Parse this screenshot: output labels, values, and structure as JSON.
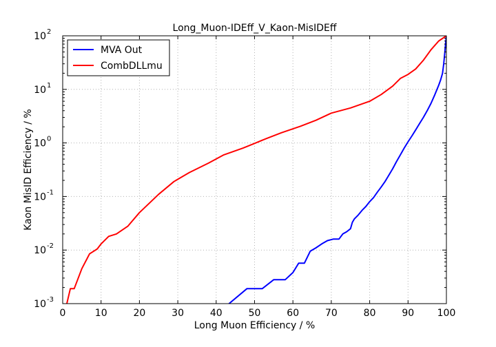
{
  "chart_data": {
    "type": "line",
    "title": "Long_Muon-IDEff_V_Kaon-MisIDEff",
    "xlabel": "Long Muon Efficiency / %",
    "ylabel": "Kaon MisID Efficiency / %",
    "xlim": [
      0,
      100
    ],
    "ylim": [
      0.001,
      100
    ],
    "yscale": "log",
    "grid": true,
    "legend_position": "top-left",
    "x_ticks": [
      0,
      10,
      20,
      30,
      40,
      50,
      60,
      70,
      80,
      90,
      100
    ],
    "y_ticks": [
      {
        "value": 0.001,
        "base": "10",
        "exp": "-3"
      },
      {
        "value": 0.01,
        "base": "10",
        "exp": "-2"
      },
      {
        "value": 0.1,
        "base": "10",
        "exp": "-1"
      },
      {
        "value": 1,
        "base": "10",
        "exp": "0"
      },
      {
        "value": 10,
        "base": "10",
        "exp": "1"
      },
      {
        "value": 100,
        "base": "10",
        "exp": "2"
      }
    ],
    "series": [
      {
        "name": "MVA Out",
        "color": "#0000ff",
        "x": [
          43,
          48,
          52,
          55,
          58,
          60,
          61.5,
          63,
          64.5,
          66,
          67.5,
          69,
          70.5,
          72,
          73,
          74,
          75,
          75.5,
          76,
          77,
          78,
          79,
          80,
          81,
          82,
          83,
          84,
          85,
          86,
          87,
          88,
          89,
          90,
          91,
          92,
          93,
          94,
          95,
          96,
          97,
          98,
          98.5,
          99,
          99.3,
          99.6,
          99.8,
          100
        ],
        "y": [
          0.00095,
          0.0019,
          0.0019,
          0.0028,
          0.0028,
          0.0038,
          0.0057,
          0.0057,
          0.0095,
          0.011,
          0.013,
          0.015,
          0.016,
          0.016,
          0.02,
          0.022,
          0.025,
          0.033,
          0.038,
          0.045,
          0.055,
          0.065,
          0.08,
          0.095,
          0.12,
          0.15,
          0.19,
          0.25,
          0.33,
          0.45,
          0.6,
          0.8,
          1.05,
          1.35,
          1.75,
          2.3,
          3.0,
          4.0,
          5.5,
          8.0,
          12.0,
          15.0,
          20.0,
          30.0,
          50.0,
          75.0,
          100.0
        ]
      },
      {
        "name": "CombDLLmu",
        "color": "#ff0000",
        "x": [
          1,
          2,
          3,
          5,
          7,
          9,
          10,
          12,
          14,
          17,
          20,
          25,
          29,
          33,
          38,
          42,
          47,
          50,
          53,
          57,
          62,
          66,
          70,
          75,
          80,
          83,
          86,
          88,
          90,
          92,
          94,
          96,
          98,
          100
        ],
        "y": [
          0.00095,
          0.0019,
          0.0019,
          0.0045,
          0.0085,
          0.0105,
          0.013,
          0.018,
          0.02,
          0.028,
          0.05,
          0.11,
          0.19,
          0.28,
          0.42,
          0.6,
          0.8,
          0.98,
          1.2,
          1.55,
          2.05,
          2.65,
          3.6,
          4.5,
          6.0,
          8.0,
          11.5,
          16.0,
          19.0,
          24.0,
          35.0,
          55.0,
          80.0,
          100.0
        ]
      }
    ]
  }
}
